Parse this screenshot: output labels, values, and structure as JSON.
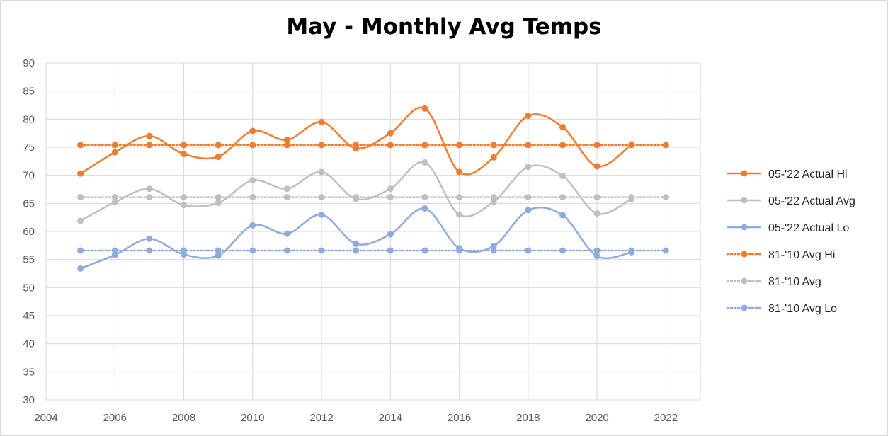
{
  "chart_data": {
    "type": "line",
    "title": "May - Monthly Avg Temps",
    "xlabel": "",
    "ylabel": "",
    "xlim": [
      2004,
      2023
    ],
    "ylim": [
      30,
      90
    ],
    "x_ticks": [
      2004,
      2006,
      2008,
      2010,
      2012,
      2014,
      2016,
      2018,
      2020,
      2022
    ],
    "y_ticks": [
      30,
      35,
      40,
      45,
      50,
      55,
      60,
      65,
      70,
      75,
      80,
      85,
      90
    ],
    "grid": true,
    "legend_position": "right",
    "x": [
      2005,
      2006,
      2007,
      2008,
      2009,
      2010,
      2011,
      2012,
      2013,
      2014,
      2015,
      2016,
      2017,
      2018,
      2019,
      2020,
      2021,
      2022
    ],
    "series": [
      {
        "name": "05-'22 Actual Hi",
        "color": "#ed7d31",
        "style": "solid",
        "values": [
          70.3,
          74.1,
          77.0,
          73.8,
          73.3,
          77.9,
          76.3,
          79.5,
          74.8,
          77.5,
          81.9,
          70.6,
          73.2,
          80.6,
          78.6,
          71.6,
          75.5,
          null
        ]
      },
      {
        "name": "05-'22 Actual Avg",
        "color": "#bfbfbf",
        "style": "solid",
        "values": [
          61.9,
          65.2,
          67.6,
          64.7,
          65.1,
          69.1,
          67.6,
          70.6,
          65.8,
          67.6,
          72.3,
          63.0,
          65.3,
          71.5,
          69.9,
          63.2,
          65.8,
          null
        ]
      },
      {
        "name": "05-'22 Actual Lo",
        "color": "#8faadc",
        "style": "solid",
        "values": [
          53.4,
          55.8,
          58.7,
          55.9,
          55.7,
          61.1,
          59.6,
          63.0,
          57.8,
          59.5,
          64.1,
          57.0,
          57.4,
          63.8,
          62.9,
          55.6,
          56.3,
          null
        ]
      },
      {
        "name": "81-'10 Avg Hi",
        "color": "#ed7d31",
        "style": "dotted",
        "values": [
          75.4,
          75.4,
          75.4,
          75.4,
          75.4,
          75.4,
          75.4,
          75.4,
          75.4,
          75.4,
          75.4,
          75.4,
          75.4,
          75.4,
          75.4,
          75.4,
          75.4,
          75.4
        ]
      },
      {
        "name": "81-'10 Avg",
        "color": "#bfbfbf",
        "style": "dotted",
        "values": [
          66.1,
          66.1,
          66.1,
          66.1,
          66.1,
          66.1,
          66.1,
          66.1,
          66.1,
          66.1,
          66.1,
          66.1,
          66.1,
          66.1,
          66.1,
          66.1,
          66.1,
          66.1
        ]
      },
      {
        "name": "81-'10 Avg Lo",
        "color": "#8faadc",
        "style": "dotted",
        "values": [
          56.6,
          56.6,
          56.6,
          56.6,
          56.6,
          56.6,
          56.6,
          56.6,
          56.6,
          56.6,
          56.6,
          56.6,
          56.6,
          56.6,
          56.6,
          56.6,
          56.6,
          56.6
        ]
      }
    ]
  }
}
